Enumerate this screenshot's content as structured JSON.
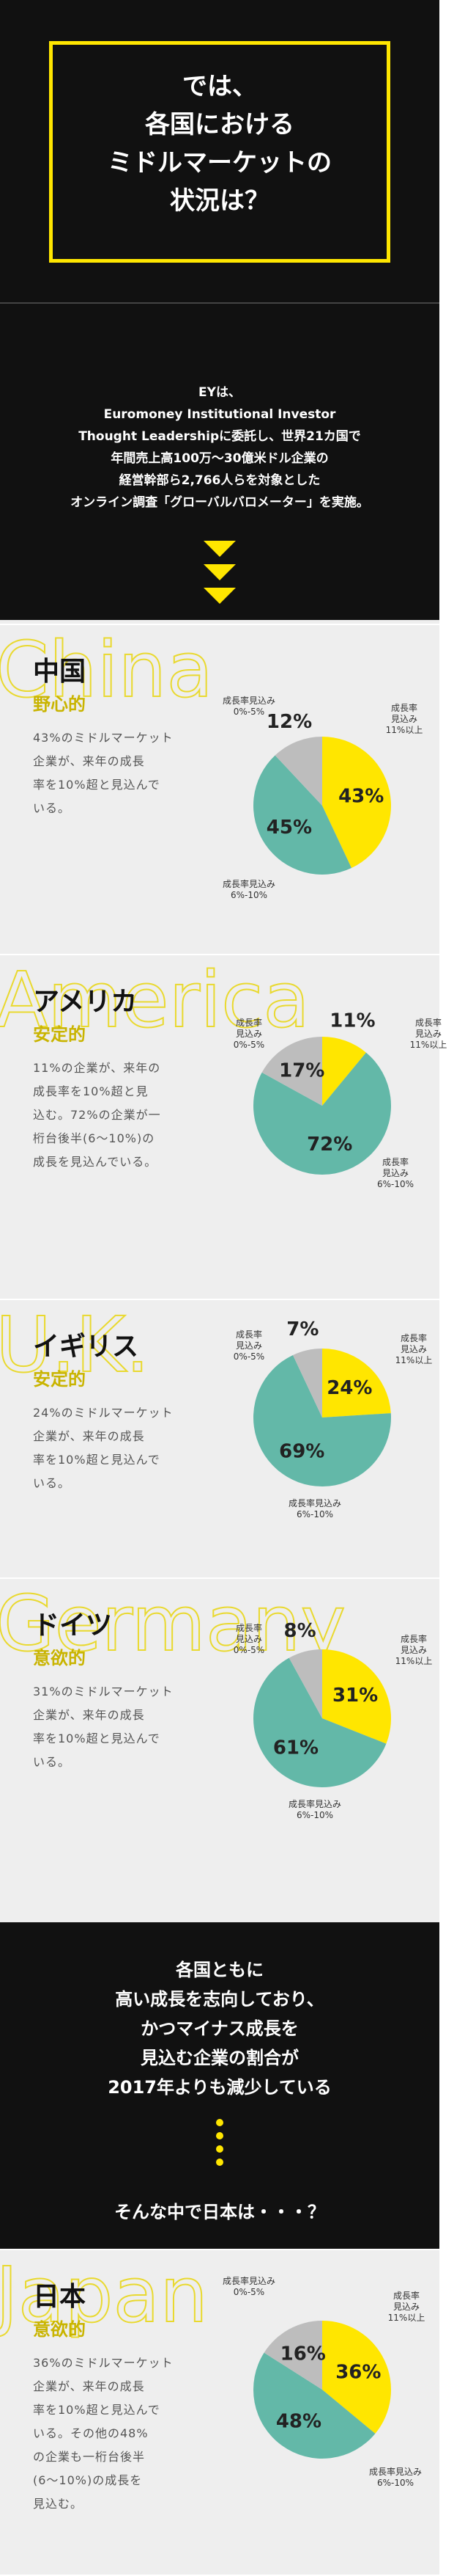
{
  "header": {
    "title": "では、\n各国における\nミドルマーケットの\n状況は？"
  },
  "intro": {
    "text": "EYは、\nEuromoney Institutional Investor\nThought Leadershipに委託し、世界21カ国で\n年間売上高100万～30億米ドル企業の\n経営幹部ら2,766人らを対象とした\nオンライン調査「グローバルバロメーター」を実施。"
  },
  "chart_data": [
    {
      "type": "pie",
      "watermark": "China",
      "title": "中国",
      "subtitle": "野心的",
      "description": "43%のミドルマーケット\n企業が、来年の成長\n率を10%超と見込んで\nいる。",
      "categories": [
        "成長率\n見込み\n11%以上",
        "成長率見込み\n6%-10%",
        "成長率見込み\n0%-5%"
      ],
      "values": [
        43,
        45,
        12
      ],
      "value_labels": [
        "43%",
        "45%",
        "12%"
      ],
      "colors": [
        "#ffe600",
        "#63b8a8",
        "#bdbdbd"
      ]
    },
    {
      "type": "pie",
      "watermark": "America",
      "title": "アメリカ",
      "subtitle": "安定的",
      "description": "11%の企業が、来年の\n成長率を10%超と見\n込む。72%の企業が一\n桁台後半(6〜10%)の\n成長を見込んでいる。",
      "categories": [
        "成長率\n見込み\n11%以上",
        "成長率\n見込み\n6%-10%",
        "成長率\n見込み\n0%-5%"
      ],
      "values": [
        11,
        72,
        17
      ],
      "value_labels": [
        "11%",
        "72%",
        "17%"
      ],
      "colors": [
        "#ffe600",
        "#63b8a8",
        "#bdbdbd"
      ]
    },
    {
      "type": "pie",
      "watermark": "U.K.",
      "title": "イギリス",
      "subtitle": "安定的",
      "description": "24%のミドルマーケット\n企業が、来年の成長\n率を10%超と見込んで\nいる。",
      "categories": [
        "成長率\n見込み\n11%以上",
        "成長率見込み\n6%-10%",
        "成長率\n見込み\n0%-5%"
      ],
      "values": [
        24,
        69,
        7
      ],
      "value_labels": [
        "24%",
        "69%",
        "7%"
      ],
      "colors": [
        "#ffe600",
        "#63b8a8",
        "#bdbdbd"
      ]
    },
    {
      "type": "pie",
      "watermark": "Germany",
      "title": "ドイツ",
      "subtitle": "意欲的",
      "description": "31%のミドルマーケット\n企業が、来年の成長\n率を10%超と見込んで\nいる。",
      "categories": [
        "成長率\n見込み\n11%以上",
        "成長率見込み\n6%-10%",
        "成長率\n見込み\n0%-5%"
      ],
      "values": [
        31,
        61,
        8
      ],
      "value_labels": [
        "31%",
        "61%",
        "8%"
      ],
      "colors": [
        "#ffe600",
        "#63b8a8",
        "#bdbdbd"
      ]
    },
    {
      "type": "pie",
      "watermark": "Japan",
      "title": "日本",
      "subtitle": "意欲的",
      "description": "36%のミドルマーケット\n企業が、来年の成長\n率を10%超と見込んで\nいる。その他の48%\nの企業も一桁台後半\n(6〜10%)の成長を\n見込む。",
      "categories": [
        "成長率\n見込み\n11%以上",
        "成長率見込み\n6%-10%",
        "成長率見込み\n0%-5%"
      ],
      "values": [
        36,
        48,
        16
      ],
      "value_labels": [
        "36%",
        "48%",
        "16%"
      ],
      "colors": [
        "#ffe600",
        "#63b8a8",
        "#bdbdbd"
      ]
    }
  ],
  "summary": {
    "text": "各国ともに\n高い成長を志向しており、\nかつマイナス成長を\n見込む企業の割合が\n2017年よりも減少している",
    "question": "そんな中で日本は・・・？"
  }
}
